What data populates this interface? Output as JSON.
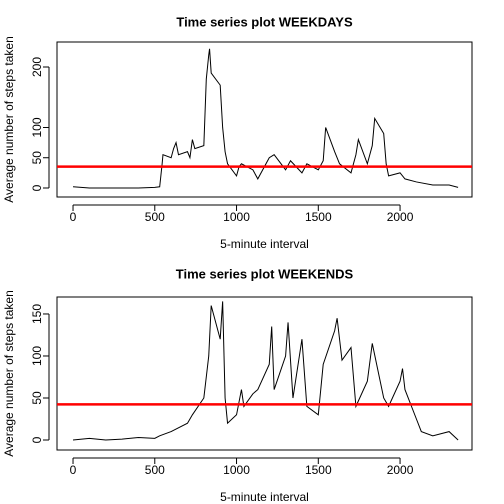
{
  "chart_data": [
    {
      "type": "line",
      "title": "Time series plot WEEKDAYS",
      "xlabel": "5-minute interval",
      "ylabel": "Average number of steps taken",
      "x": [
        0,
        100,
        200,
        300,
        400,
        500,
        530,
        545,
        550,
        600,
        615,
        630,
        645,
        700,
        715,
        730,
        745,
        800,
        815,
        830,
        835,
        845,
        900,
        915,
        930,
        945,
        1000,
        1015,
        1030,
        1100,
        1130,
        1200,
        1230,
        1300,
        1330,
        1400,
        1430,
        1500,
        1530,
        1545,
        1600,
        1630,
        1700,
        1730,
        1745,
        1800,
        1830,
        1845,
        1900,
        1915,
        1930,
        2000,
        2030,
        2100,
        2200,
        2300,
        2355
      ],
      "series": [
        {
          "color": "#000000",
          "values": [
            2,
            0,
            0,
            0,
            0,
            1,
            2,
            40,
            55,
            50,
            65,
            75,
            55,
            60,
            50,
            80,
            65,
            70,
            180,
            220,
            230,
            190,
            170,
            100,
            60,
            40,
            20,
            35,
            40,
            30,
            15,
            50,
            55,
            30,
            45,
            25,
            40,
            30,
            45,
            100,
            60,
            40,
            25,
            55,
            80,
            40,
            70,
            115,
            90,
            40,
            20,
            25,
            15,
            10,
            5,
            5,
            1
          ]
        }
      ],
      "reference_line": {
        "value": 35.3,
        "color": "#ff0000"
      },
      "xlim": [
        -98,
        2440
      ],
      "xticks": [
        0,
        500,
        1000,
        1500,
        2000
      ],
      "ylim": [
        -14.9,
        241.3
      ],
      "yticks": [
        0,
        50,
        100,
        200
      ]
    },
    {
      "type": "line",
      "title": "Time series plot WEEKENDS",
      "xlabel": "5-minute interval",
      "ylabel": "Average number of steps taken",
      "x": [
        0,
        100,
        200,
        300,
        400,
        500,
        530,
        600,
        700,
        730,
        800,
        830,
        845,
        900,
        915,
        930,
        945,
        1000,
        1030,
        1045,
        1100,
        1130,
        1200,
        1215,
        1230,
        1300,
        1315,
        1345,
        1400,
        1430,
        1500,
        1530,
        1600,
        1615,
        1645,
        1700,
        1730,
        1800,
        1830,
        1900,
        1930,
        2000,
        2015,
        2030,
        2100,
        2130,
        2200,
        2300,
        2355
      ],
      "series": [
        {
          "color": "#000000",
          "values": [
            0,
            2,
            0,
            1,
            3,
            2,
            5,
            10,
            20,
            30,
            50,
            100,
            160,
            120,
            165,
            50,
            20,
            30,
            60,
            40,
            55,
            60,
            90,
            135,
            60,
            100,
            140,
            50,
            120,
            40,
            30,
            90,
            130,
            145,
            95,
            110,
            40,
            70,
            115,
            50,
            40,
            70,
            85,
            60,
            25,
            10,
            5,
            10,
            0
          ]
        }
      ],
      "reference_line": {
        "value": 42.4,
        "color": "#ff0000"
      },
      "xlim": [
        -98,
        2440
      ],
      "xticks": [
        0,
        500,
        1000,
        1500,
        2000
      ],
      "ylim": [
        -11.9,
        170.2
      ],
      "yticks": [
        0,
        50,
        100,
        150
      ]
    }
  ]
}
